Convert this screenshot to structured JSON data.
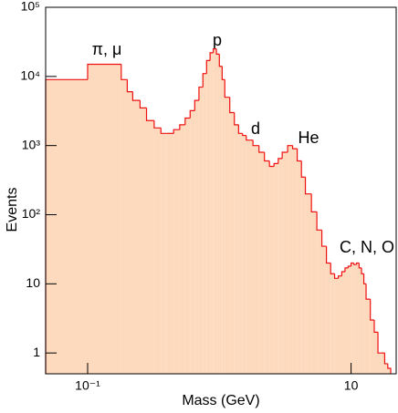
{
  "chart_data": {
    "type": "histogram",
    "xlabel": "Mass (GeV)",
    "ylabel": "Events",
    "log_x": true,
    "log_y": true,
    "fill_color": "#fdd9bd",
    "line_color": "#ee1111",
    "annotation_color": "#1e8ce6",
    "annotations": [
      "π, μ",
      "p",
      "d",
      "He",
      "C, N, O"
    ],
    "xlim": [
      0.048,
      22
    ],
    "ylim": [
      0.5,
      100000
    ],
    "xticks": [
      {
        "value": 0.1,
        "label": "10⁻¹"
      },
      {
        "value": 10,
        "label": "10"
      }
    ],
    "yticks": [
      {
        "value": 1,
        "label": "1"
      },
      {
        "value": 10,
        "label": "10"
      },
      {
        "value": 100,
        "label": "10²"
      },
      {
        "value": 1000,
        "label": "10³"
      },
      {
        "value": 10000,
        "label": "10⁴"
      },
      {
        "value": 100000,
        "label": "10⁵"
      }
    ],
    "bins": [
      0.048,
      0.1,
      0.18,
      0.2,
      0.22,
      0.25,
      0.28,
      0.32,
      0.36,
      0.4,
      0.45,
      0.5,
      0.55,
      0.6,
      0.65,
      0.7,
      0.75,
      0.8,
      0.85,
      0.9,
      0.95,
      1.0,
      1.05,
      1.1,
      1.2,
      1.3,
      1.4,
      1.5,
      1.6,
      1.8,
      2.0,
      2.2,
      2.4,
      2.6,
      2.8,
      3.0,
      3.3,
      3.6,
      3.9,
      4.2,
      4.5,
      5.0,
      5.5,
      6.0,
      6.5,
      7.0,
      7.5,
      8.0,
      8.5,
      9.0,
      9.5,
      10,
      10.5,
      11,
      11.5,
      12,
      12.5,
      13,
      14,
      15,
      16,
      17,
      18,
      19,
      20
    ],
    "values": [
      9000,
      15000,
      9000,
      6000,
      4500,
      3500,
      2300,
      1800,
      1500,
      1500,
      1700,
      2000,
      2500,
      3200,
      4500,
      7000,
      11000,
      17000,
      22000,
      25000,
      21000,
      14000,
      9000,
      5000,
      3000,
      2000,
      1500,
      1400,
      1200,
      1000,
      800,
      600,
      500,
      550,
      650,
      800,
      1000,
      900,
      600,
      350,
      200,
      110,
      60,
      35,
      20,
      14,
      12,
      13,
      15,
      17,
      18,
      20,
      19,
      20,
      17,
      14,
      10,
      6,
      3,
      2,
      1,
      1,
      0.7,
      0.6
    ]
  }
}
